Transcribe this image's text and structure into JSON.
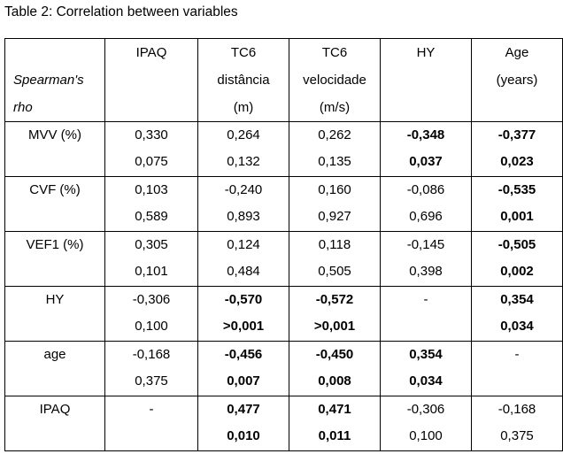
{
  "caption": "Table 2: Correlation between variables",
  "header": {
    "corner": [
      "",
      "Spearman's",
      "rho"
    ],
    "columns": [
      {
        "lines": [
          "IPAQ"
        ]
      },
      {
        "lines": [
          "TC6",
          "distância",
          "(m)"
        ]
      },
      {
        "lines": [
          "TC6",
          "velocidade",
          "(m/s)"
        ]
      },
      {
        "lines": [
          "HY"
        ]
      },
      {
        "lines": [
          "Age",
          "(years)"
        ]
      }
    ]
  },
  "rows": [
    {
      "label": "MVV (%)",
      "cells": [
        {
          "r": "0,330",
          "p": "0,075",
          "bold": false
        },
        {
          "r": "0,264",
          "p": "0,132",
          "bold": false
        },
        {
          "r": "0,262",
          "p": "0,135",
          "bold": false
        },
        {
          "r": "-0,348",
          "p": "0,037",
          "bold": true
        },
        {
          "r": "-0,377",
          "p": "0,023",
          "bold": true
        }
      ]
    },
    {
      "label": "CVF (%)",
      "cells": [
        {
          "r": "0,103",
          "p": "0,589",
          "bold": false
        },
        {
          "r": "-0,240",
          "p": "0,893",
          "bold": false
        },
        {
          "r": "0,160",
          "p": "0,927",
          "bold": false
        },
        {
          "r": "-0,086",
          "p": "0,696",
          "bold": false
        },
        {
          "r": "-0,535",
          "p": "0,001",
          "bold": true
        }
      ]
    },
    {
      "label": "VEF1 (%)",
      "cells": [
        {
          "r": "0,305",
          "p": "0,101",
          "bold": false
        },
        {
          "r": "0,124",
          "p": "0,484",
          "bold": false
        },
        {
          "r": "0,118",
          "p": "0,505",
          "bold": false
        },
        {
          "r": "-0,145",
          "p": "0,398",
          "bold": false
        },
        {
          "r": "-0,505",
          "p": "0,002",
          "bold": true
        }
      ]
    },
    {
      "label": "HY",
      "cells": [
        {
          "r": "-0,306",
          "p": "0,100",
          "bold": false
        },
        {
          "r": "-0,570",
          "p": ">0,001",
          "bold": true
        },
        {
          "r": "-0,572",
          "p": ">0,001",
          "bold": true
        },
        {
          "r": "-",
          "p": "",
          "bold": false
        },
        {
          "r": "0,354",
          "p": "0,034",
          "bold": true
        }
      ]
    },
    {
      "label": "age",
      "cells": [
        {
          "r": "-0,168",
          "p": "0,375",
          "bold": false
        },
        {
          "r": "-0,456",
          "p": "0,007",
          "bold": true
        },
        {
          "r": "-0,450",
          "p": "0,008",
          "bold": true
        },
        {
          "r": "0,354",
          "p": "0,034",
          "bold": true
        },
        {
          "r": "-",
          "p": "",
          "bold": false
        }
      ]
    },
    {
      "label": "IPAQ",
      "cells": [
        {
          "r": "-",
          "p": "",
          "bold": false
        },
        {
          "r": "0,477",
          "p": "0,010",
          "bold": true
        },
        {
          "r": "0,471",
          "p": "0,011",
          "bold": true
        },
        {
          "r": "-0,306",
          "p": "0,100",
          "bold": false
        },
        {
          "r": "-0,168",
          "p": "0,375",
          "bold": false
        }
      ]
    }
  ]
}
